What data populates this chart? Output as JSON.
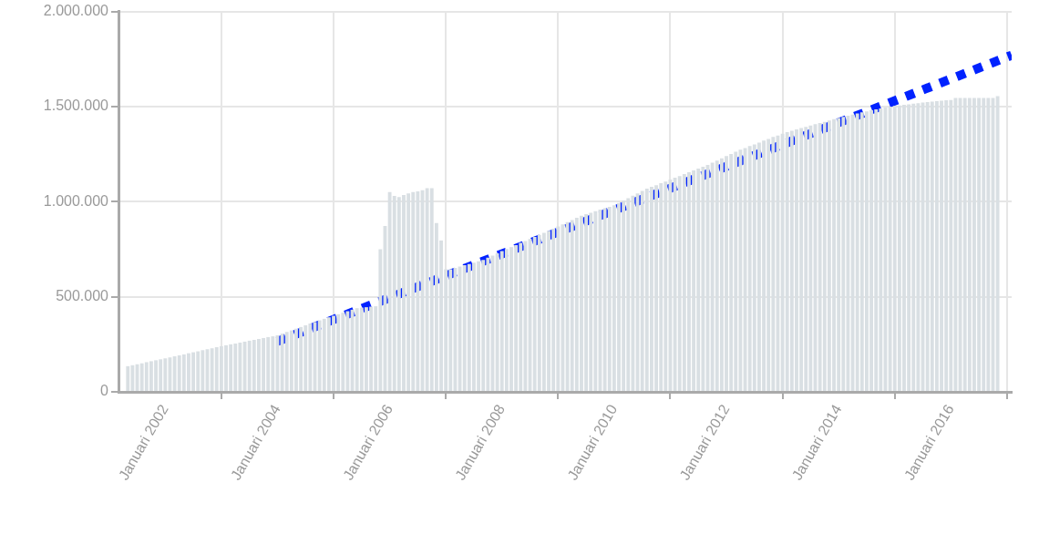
{
  "chart_data": {
    "type": "bar",
    "x": [
      "2001-05",
      "2001-06",
      "2001-07",
      "2001-08",
      "2001-09",
      "2001-10",
      "2001-11",
      "2001-12",
      "2002-01",
      "2002-02",
      "2002-03",
      "2002-04",
      "2002-05",
      "2002-06",
      "2002-07",
      "2002-08",
      "2002-09",
      "2002-10",
      "2002-11",
      "2002-12",
      "2003-01",
      "2003-02",
      "2003-03",
      "2003-04",
      "2003-05",
      "2003-06",
      "2003-07",
      "2003-08",
      "2003-09",
      "2003-10",
      "2003-11",
      "2003-12",
      "2004-01",
      "2004-02",
      "2004-03",
      "2004-04",
      "2004-05",
      "2004-06",
      "2004-07",
      "2004-08",
      "2004-09",
      "2004-10",
      "2004-11",
      "2004-12",
      "2005-01",
      "2005-02",
      "2005-03",
      "2005-04",
      "2005-05",
      "2005-06",
      "2005-07",
      "2005-08",
      "2005-09",
      "2005-10",
      "2005-11",
      "2005-12",
      "2006-01",
      "2006-02",
      "2006-03",
      "2006-04",
      "2006-05",
      "2006-06",
      "2006-07",
      "2006-08",
      "2006-09",
      "2006-10",
      "2006-11",
      "2006-12",
      "2007-01",
      "2007-02",
      "2007-03",
      "2007-04",
      "2007-05",
      "2007-06",
      "2007-07",
      "2007-08",
      "2007-09",
      "2007-10",
      "2007-11",
      "2007-12",
      "2008-01",
      "2008-02",
      "2008-03",
      "2008-04",
      "2008-05",
      "2008-06",
      "2008-07",
      "2008-08",
      "2008-09",
      "2008-10",
      "2008-11",
      "2008-12",
      "2009-01",
      "2009-02",
      "2009-03",
      "2009-04",
      "2009-05",
      "2009-06",
      "2009-07",
      "2009-08",
      "2009-09",
      "2009-10",
      "2009-11",
      "2009-12",
      "2010-01",
      "2010-02",
      "2010-03",
      "2010-04",
      "2010-05",
      "2010-06",
      "2010-07",
      "2010-08",
      "2010-09",
      "2010-10",
      "2010-11",
      "2010-12",
      "2011-01",
      "2011-02",
      "2011-03",
      "2011-04",
      "2011-05",
      "2011-06",
      "2011-07",
      "2011-08",
      "2011-09",
      "2011-10",
      "2011-11",
      "2011-12",
      "2012-01",
      "2012-02",
      "2012-03",
      "2012-04",
      "2012-05",
      "2012-06",
      "2012-07",
      "2012-08",
      "2012-09",
      "2012-10",
      "2012-11",
      "2012-12",
      "2013-01",
      "2013-02",
      "2013-03",
      "2013-04",
      "2013-05",
      "2013-06",
      "2013-07",
      "2013-08",
      "2013-09",
      "2013-10",
      "2013-11",
      "2013-12",
      "2014-01",
      "2014-02",
      "2014-03",
      "2014-04",
      "2014-05",
      "2014-06",
      "2014-07",
      "2014-08",
      "2014-09",
      "2014-10",
      "2014-11",
      "2014-12",
      "2015-01",
      "2015-02",
      "2015-03",
      "2015-04",
      "2015-05",
      "2015-06",
      "2015-07",
      "2015-08",
      "2015-09",
      "2015-10",
      "2015-11",
      "2015-12",
      "2016-01",
      "2016-02",
      "2016-03",
      "2016-04",
      "2016-05",
      "2016-06",
      "2016-07",
      "2016-08",
      "2016-09",
      "2016-10",
      "2016-11"
    ],
    "series": [
      {
        "color": "#d9dfe3",
        "values": [
          135000,
          140000,
          145000,
          150000,
          156000,
          161000,
          166000,
          171000,
          176000,
          181000,
          187000,
          192000,
          197000,
          203000,
          208000,
          213000,
          219000,
          224000,
          229000,
          235000,
          240000,
          245000,
          250000,
          254000,
          259000,
          264000,
          269000,
          273000,
          278000,
          283000,
          288000,
          292000,
          297000,
          306000,
          315000,
          323000,
          332000,
          341000,
          350000,
          359000,
          367000,
          376000,
          384000,
          392000,
          400000,
          408000,
          416000,
          424000,
          432000,
          440000,
          443000,
          445000,
          448000,
          450000,
          750000,
          872000,
          1051000,
          1030000,
          1024000,
          1035000,
          1043000,
          1051000,
          1054000,
          1060000,
          1071000,
          1071000,
          888000,
          796000,
          644000,
          644000,
          652000,
          659000,
          666000,
          672000,
          679000,
          686000,
          693000,
          705000,
          716000,
          728000,
          740000,
          751000,
          761000,
          772000,
          783000,
          793000,
          804000,
          815000,
          825000,
          836000,
          847000,
          858000,
          870000,
          881000,
          892000,
          903000,
          915000,
          926000,
          934000,
          942000,
          950000,
          958000,
          965000,
          973000,
          981000,
          993000,
          1006000,
          1018000,
          1031000,
          1043000,
          1056000,
          1068000,
          1078000,
          1087000,
          1097000,
          1106000,
          1116000,
          1126000,
          1135000,
          1145000,
          1155000,
          1164000,
          1174000,
          1183000,
          1193000,
          1205000,
          1216000,
          1228000,
          1240000,
          1251000,
          1263000,
          1273000,
          1282000,
          1292000,
          1301000,
          1311000,
          1321000,
          1330000,
          1340000,
          1348000,
          1357000,
          1365000,
          1373000,
          1380000,
          1387000,
          1393000,
          1400000,
          1407000,
          1414000,
          1420000,
          1427000,
          1434000,
          1440000,
          1446000,
          1452000,
          1458000,
          1464000,
          1470000,
          1475000,
          1480000,
          1485000,
          1490000,
          1495000,
          1500000,
          1503000,
          1506000,
          1509000,
          1512000,
          1515000,
          1518000,
          1521000,
          1524000,
          1526000,
          1528000,
          1531000,
          1533000,
          1535000,
          1545000,
          1545000,
          1545000,
          1545000,
          1545000,
          1545000,
          1545000,
          1545000,
          1545000,
          1555000
        ]
      },
      {
        "type": "line",
        "color": "#0022ff",
        "line_style": "dashed",
        "x": [
          "2004-01",
          "2017-02"
        ],
        "values": [
          265000,
          1770000
        ]
      }
    ],
    "xlim": [
      "2001-03",
      "2017-02"
    ],
    "xticks": [
      {
        "value": "2002-01",
        "label": "Januari 2002"
      },
      {
        "value": "2004-01",
        "label": "Januari 2004"
      },
      {
        "value": "2006-01",
        "label": "Januari 2006"
      },
      {
        "value": "2008-01",
        "label": "Januari 2008"
      },
      {
        "value": "2010-01",
        "label": "Januari 2010"
      },
      {
        "value": "2012-01",
        "label": "Januari 2012"
      },
      {
        "value": "2014-01",
        "label": "Januari 2014"
      },
      {
        "value": "2016-01",
        "label": "Januari 2016"
      }
    ],
    "ylim": [
      0,
      2000000
    ],
    "yticks": [
      0,
      {
        "value": 500000,
        "label": "500.000"
      },
      {
        "value": 1000000,
        "label": "1.000.000"
      },
      {
        "value": 1500000,
        "label": "1.500.000"
      },
      {
        "value": 2000000,
        "label": "2.000.000"
      }
    ],
    "grid": true,
    "legend": false
  }
}
